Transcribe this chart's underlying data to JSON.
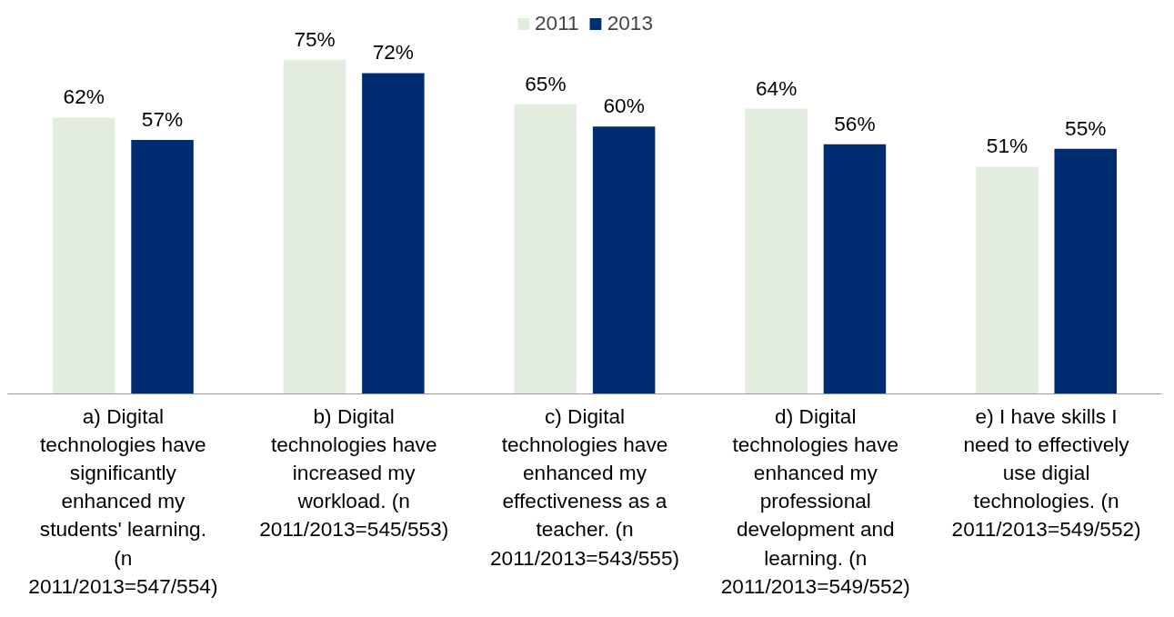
{
  "chart_data": {
    "type": "bar",
    "categories": [
      "a) Digital technologies have significantly enhanced my students' learning. (n 2011/2013=547/554)",
      "b) Digital technologies have increased my workload. (n 2011/2013=545/553)",
      "c) Digital technologies have enhanced my effectiveness as a teacher. (n 2011/2013=543/555)",
      "d) Digital technologies have enhanced my professional development and learning. (n 2011/2013=549/552)",
      "e) I have skills I need to effectively use digial technologies. (n 2011/2013=549/552)"
    ],
    "series": [
      {
        "name": "2011",
        "color": "#e2ede0",
        "values": [
          62,
          75,
          65,
          64,
          51
        ],
        "value_labels": [
          "62%",
          "75%",
          "65%",
          "64%",
          "51%"
        ]
      },
      {
        "name": "2013",
        "color": "#002d72",
        "values": [
          57,
          72,
          60,
          56,
          55
        ],
        "value_labels": [
          "57%",
          "72%",
          "60%",
          "56%",
          "55%"
        ]
      }
    ],
    "legend": "top",
    "grid": false,
    "tick_labels": "x"
  }
}
